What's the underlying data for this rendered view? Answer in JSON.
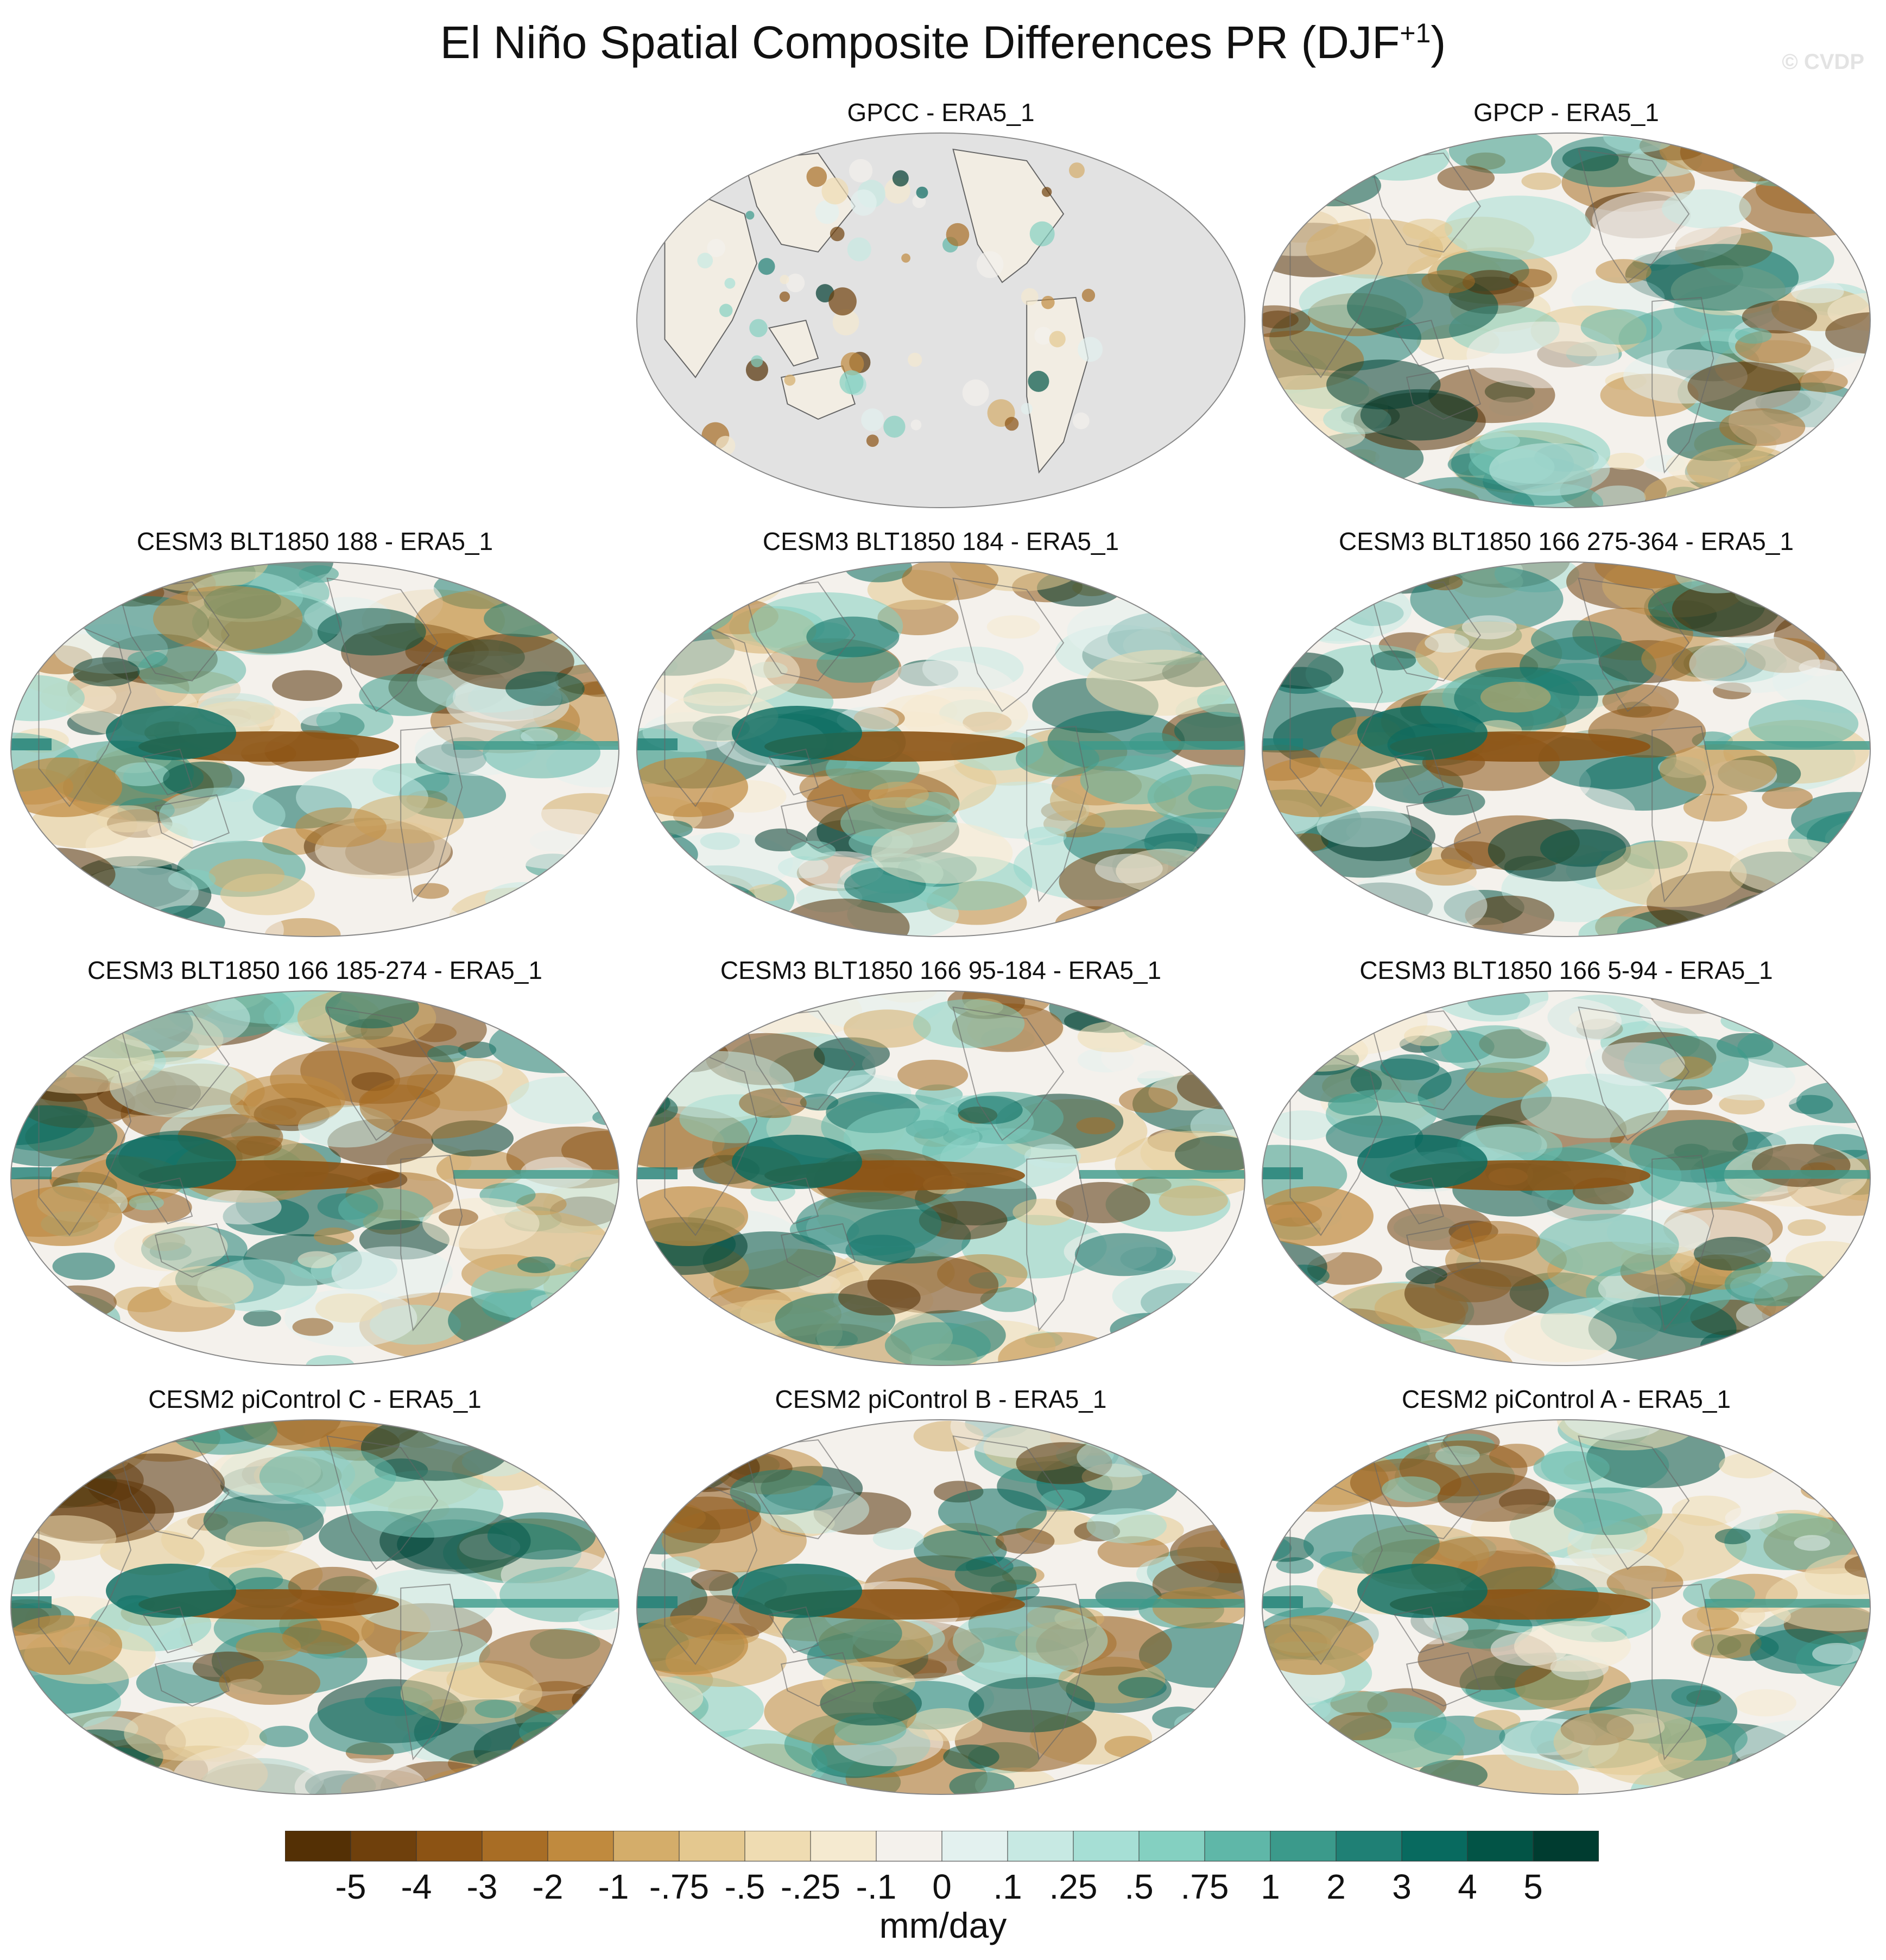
{
  "title_main": "El Niño Spatial Composite Differences PR (DJF",
  "title_sup": "+1",
  "title_end": ")",
  "watermark": "© CVDP",
  "colors": {
    "land_mask": "#e2e2e2",
    "coast": "#666666",
    "ocean_bg": "#f4f1ec"
  },
  "panels": [
    {
      "title": "GPCC - ERA5_1",
      "land_only": true
    },
    {
      "title": "GPCP - ERA5_1",
      "land_only": false
    },
    {
      "title": "CESM3 BLT1850 188 - ERA5_1",
      "land_only": false
    },
    {
      "title": "CESM3 BLT1850 184 - ERA5_1",
      "land_only": false
    },
    {
      "title": "CESM3 BLT1850 166 275-364 - ERA5_1",
      "land_only": false
    },
    {
      "title": "CESM3 BLT1850 166 185-274 - ERA5_1",
      "land_only": false
    },
    {
      "title": "CESM3 BLT1850 166 95-184 - ERA5_1",
      "land_only": false
    },
    {
      "title": "CESM3 BLT1850 166 5-94 - ERA5_1",
      "land_only": false
    },
    {
      "title": "CESM2 piControl C - ERA5_1",
      "land_only": false
    },
    {
      "title": "CESM2 piControl B - ERA5_1",
      "land_only": false
    },
    {
      "title": "CESM2 piControl A - ERA5_1",
      "land_only": false
    }
  ],
  "colorbar": {
    "colors": [
      "#543005",
      "#6f400c",
      "#8c5314",
      "#a86d25",
      "#c08a3e",
      "#d4ad6a",
      "#e4c88f",
      "#efdcb2",
      "#f5ead0",
      "#f4f1ec",
      "#e3f1ef",
      "#c7e9e3",
      "#a6dfd5",
      "#84d0c1",
      "#5fb7a8",
      "#3b9a8b",
      "#1f8075",
      "#086a5f",
      "#025446",
      "#003c30"
    ],
    "labels": [
      "-5",
      "-4",
      "-3",
      "-2",
      "-1",
      "-.75",
      "-.5",
      "-.25",
      "-.1",
      "0",
      ".1",
      ".25",
      ".5",
      ".75",
      "1",
      "2",
      "3",
      "4",
      "5"
    ],
    "units": "mm/day"
  }
}
